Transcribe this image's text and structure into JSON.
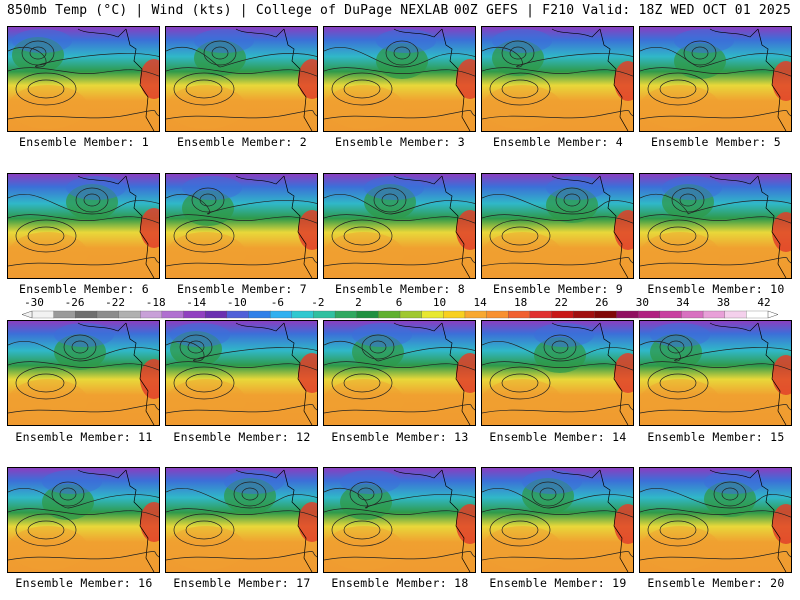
{
  "header": {
    "left": "850mb Temp (°C) | Wind (kts) | College of DuPage NEXLAB",
    "right": "00Z GEFS | F210 Valid: 18Z WED OCT 01 2025"
  },
  "ensemble_label_prefix": "Ensemble Member:",
  "members": [
    {
      "label": "Ensemble Member: 1"
    },
    {
      "label": "Ensemble Member: 2"
    },
    {
      "label": "Ensemble Member: 3"
    },
    {
      "label": "Ensemble Member: 4"
    },
    {
      "label": "Ensemble Member: 5"
    },
    {
      "label": "Ensemble Member: 6"
    },
    {
      "label": "Ensemble Member: 7"
    },
    {
      "label": "Ensemble Member: 8"
    },
    {
      "label": "Ensemble Member: 9"
    },
    {
      "label": "Ensemble Member: 10"
    },
    {
      "label": "Ensemble Member: 11"
    },
    {
      "label": "Ensemble Member: 12"
    },
    {
      "label": "Ensemble Member: 13"
    },
    {
      "label": "Ensemble Member: 14"
    },
    {
      "label": "Ensemble Member: 15"
    },
    {
      "label": "Ensemble Member: 16"
    },
    {
      "label": "Ensemble Member: 17"
    },
    {
      "label": "Ensemble Member: 18"
    },
    {
      "label": "Ensemble Member: 19"
    },
    {
      "label": "Ensemble Member: 20"
    }
  ],
  "colorbar": {
    "labels": [
      "-30",
      "-26",
      "-22",
      "-18",
      "-14",
      "-10",
      "-6",
      "-2",
      "2",
      "6",
      "10",
      "14",
      "18",
      "22",
      "26",
      "30",
      "34",
      "38",
      "42"
    ],
    "colors": [
      "#f2f2f2",
      "#9a9a9a",
      "#6e6e6e",
      "#8c8c8c",
      "#b0b0b0",
      "#c8a0d8",
      "#b070d0",
      "#9040c0",
      "#6a30b0",
      "#5060d8",
      "#3080e8",
      "#30b0f0",
      "#30c8d0",
      "#30c0a0",
      "#30a860",
      "#209040",
      "#60b030",
      "#a0c830",
      "#e8e830",
      "#f8d020",
      "#f8a830",
      "#f89030",
      "#f06030",
      "#e03030",
      "#c81818",
      "#a01010",
      "#800808",
      "#901060",
      "#b02080",
      "#c840a0",
      "#d870c0",
      "#e8a0d8",
      "#f4d0ec",
      "#ffffff"
    ]
  },
  "map_colors": {
    "cold_top": "#8a3fc0",
    "blue": "#3c6fd8",
    "cyan": "#30b8c8",
    "green": "#2f9a4a",
    "yellow": "#e8d83a",
    "orange": "#f0a030",
    "hot": "#e0402a"
  }
}
